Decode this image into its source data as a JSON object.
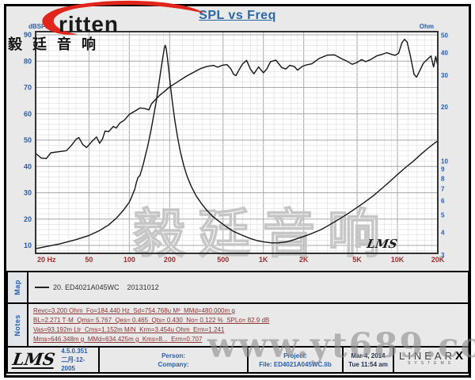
{
  "brand": {
    "logo_text": "ritten",
    "chinese": "毅廷音响"
  },
  "header": {
    "title": "SPL vs Freq"
  },
  "map_section": {
    "label": "Map",
    "legend": "20. ED4021A045WC    20131012"
  },
  "notes_section": {
    "label": "Notes",
    "lines": [
      "Revc=3.200 Ohm  Fo=184.440 Hz  Sd=754.768u M²  MMd=480.000m g",
      "BL=2.271 T·M  Qms= 5.767  Qes= 0.465  Qts= 0.430  No= 0.122 %  SPLo= 82.9 dB",
      "Vas=93.192m Ltr  Cms=1.152m M/N  Krm=3.454u Ohm  Erm=1.241",
      "Mms=646.348m g  MMd=634.425m g  Kms=8...  Erm=0.707"
    ]
  },
  "footer": {
    "lms_logo": "LMS",
    "version": "4.5.0.351",
    "release_date": "二月-12-2005",
    "person_label": "Person:",
    "company_label": "Company:",
    "project_label": "Project:",
    "file_label": "File: ED4021A045WC.lib",
    "date": "Mar  4, 2014",
    "time": "Tue 11:54 am",
    "linearx_main": "LINEAR",
    "linearx_x": "X",
    "linearx_sub": "SYSTEMS"
  },
  "watermarks": {
    "site": "www.yt689.com",
    "chinese": "毅廷音响",
    "lms_script": "LMS"
  },
  "chart_data": {
    "type": "line",
    "title": "SPL vs Freq",
    "grid": true,
    "x_axis": {
      "label": "Hz",
      "scale": "log",
      "min": 20,
      "max": 20000,
      "tick_values": [
        20,
        50,
        100,
        200,
        500,
        1000,
        2000,
        5000,
        10000,
        20000
      ],
      "tick_labels": [
        "20 Hz",
        "50",
        "100",
        "200",
        "500",
        "1K",
        "2K",
        "5K",
        "10K",
        "20K"
      ]
    },
    "y_left": {
      "label": "dBSPL",
      "scale": "linear",
      "min": 10,
      "max": 90,
      "ticks": [
        90,
        80,
        70,
        60,
        50,
        40,
        30,
        20,
        10
      ]
    },
    "y_right": {
      "label": "Ohm",
      "scale": "log",
      "min": 3,
      "max": 50,
      "ticks": [
        50,
        40,
        30,
        20,
        10,
        9,
        8,
        7,
        6,
        5,
        4,
        3
      ]
    },
    "series": [
      {
        "name": "20. ED4021A045WC 20131012 (SPL dB)",
        "axis": "left",
        "points": [
          [
            20,
            45
          ],
          [
            22,
            43.2
          ],
          [
            24,
            43
          ],
          [
            26,
            45.2
          ],
          [
            30,
            45.6
          ],
          [
            34,
            46
          ],
          [
            37,
            48
          ],
          [
            40,
            50.3
          ],
          [
            42,
            51
          ],
          [
            45,
            48.3
          ],
          [
            48,
            47.2
          ],
          [
            53,
            49.7
          ],
          [
            57,
            51.2
          ],
          [
            60,
            48.8
          ],
          [
            63,
            50.4
          ],
          [
            66,
            53.5
          ],
          [
            70,
            53.2
          ],
          [
            76,
            55.2
          ],
          [
            80,
            54.6
          ],
          [
            85,
            56.5
          ],
          [
            92,
            57.6
          ],
          [
            100,
            59.8
          ],
          [
            110,
            61
          ],
          [
            120,
            62.2
          ],
          [
            130,
            62
          ],
          [
            140,
            61.5
          ],
          [
            146,
            63.7
          ],
          [
            155,
            65.2
          ],
          [
            170,
            67.2
          ],
          [
            185,
            68.7
          ],
          [
            200,
            70.2
          ],
          [
            230,
            72.2
          ],
          [
            265,
            74.2
          ],
          [
            300,
            75.7
          ],
          [
            340,
            77.2
          ],
          [
            380,
            78
          ],
          [
            425,
            78.4
          ],
          [
            455,
            77.7
          ],
          [
            490,
            78.4
          ],
          [
            535,
            78.7
          ],
          [
            570,
            77.2
          ],
          [
            600,
            75
          ],
          [
            625,
            74.5
          ],
          [
            650,
            76.2
          ],
          [
            700,
            79
          ],
          [
            750,
            80.3
          ],
          [
            800,
            77
          ],
          [
            850,
            75.2
          ],
          [
            920,
            77.8
          ],
          [
            1000,
            75.6
          ],
          [
            1060,
            77
          ],
          [
            1130,
            79.8
          ],
          [
            1240,
            80.4
          ],
          [
            1370,
            77.6
          ],
          [
            1470,
            77
          ],
          [
            1570,
            78.4
          ],
          [
            1700,
            78
          ],
          [
            1800,
            76.6
          ],
          [
            1950,
            78
          ],
          [
            2100,
            78.6
          ],
          [
            2300,
            79
          ],
          [
            2600,
            81
          ],
          [
            3000,
            82.3
          ],
          [
            3400,
            82.4
          ],
          [
            3800,
            81
          ],
          [
            4200,
            80
          ],
          [
            4600,
            78.8
          ],
          [
            5000,
            79.5
          ],
          [
            5400,
            80.6
          ],
          [
            5800,
            79.8
          ],
          [
            6300,
            80.6
          ],
          [
            7000,
            82
          ],
          [
            7700,
            82.6
          ],
          [
            8300,
            83.2
          ],
          [
            9000,
            82.6
          ],
          [
            9600,
            82.2
          ],
          [
            10200,
            83
          ],
          [
            10800,
            87
          ],
          [
            11300,
            88.3
          ],
          [
            11800,
            87.3
          ],
          [
            12500,
            82
          ],
          [
            13300,
            75
          ],
          [
            13900,
            73.9
          ],
          [
            14700,
            76.5
          ],
          [
            15600,
            79.2
          ],
          [
            16800,
            80.8
          ],
          [
            17800,
            82
          ],
          [
            18600,
            77.8
          ],
          [
            19300,
            81.8
          ],
          [
            20000,
            78.2
          ]
        ]
      },
      {
        "name": "Impedance (Ohm)",
        "axis": "right",
        "points": [
          [
            20,
            3.25
          ],
          [
            30,
            3.45
          ],
          [
            40,
            3.65
          ],
          [
            50,
            3.85
          ],
          [
            60,
            4.1
          ],
          [
            70,
            4.4
          ],
          [
            80,
            4.8
          ],
          [
            90,
            5.3
          ],
          [
            100,
            5.9
          ],
          [
            105,
            6.4
          ],
          [
            110,
            7.0
          ],
          [
            113,
            7.6
          ],
          [
            116,
            8.1
          ],
          [
            120,
            8.3
          ],
          [
            124,
            9.0
          ],
          [
            128,
            9.8
          ],
          [
            132,
            10.8
          ],
          [
            136,
            11.8
          ],
          [
            140,
            13
          ],
          [
            145,
            14.8
          ],
          [
            150,
            17
          ],
          [
            158,
            21
          ],
          [
            165,
            26
          ],
          [
            172,
            32
          ],
          [
            178,
            38
          ],
          [
            182,
            42
          ],
          [
            185,
            44
          ],
          [
            188,
            42.5
          ],
          [
            192,
            38
          ],
          [
            197,
            32
          ],
          [
            203,
            26
          ],
          [
            210,
            21
          ],
          [
            218,
            17
          ],
          [
            228,
            13.8
          ],
          [
            240,
            11.3
          ],
          [
            255,
            9.4
          ],
          [
            270,
            8.2
          ],
          [
            290,
            7.2
          ],
          [
            315,
            6.4
          ],
          [
            345,
            5.8
          ],
          [
            380,
            5.3
          ],
          [
            420,
            4.9
          ],
          [
            470,
            4.6
          ],
          [
            530,
            4.3
          ],
          [
            600,
            4.05
          ],
          [
            700,
            3.85
          ],
          [
            800,
            3.7
          ],
          [
            900,
            3.6
          ],
          [
            1000,
            3.55
          ],
          [
            1150,
            3.5
          ],
          [
            1300,
            3.5
          ],
          [
            1500,
            3.55
          ],
          [
            1700,
            3.65
          ],
          [
            2000,
            3.8
          ],
          [
            2300,
            3.95
          ],
          [
            2700,
            4.15
          ],
          [
            3100,
            4.4
          ],
          [
            3600,
            4.7
          ],
          [
            4200,
            5.05
          ],
          [
            4900,
            5.45
          ],
          [
            5700,
            5.9
          ],
          [
            6600,
            6.4
          ],
          [
            7600,
            7.0
          ],
          [
            8800,
            7.7
          ],
          [
            10000,
            8.4
          ],
          [
            11500,
            9.2
          ],
          [
            13000,
            9.9
          ],
          [
            15000,
            10.9
          ],
          [
            17000,
            11.8
          ],
          [
            19000,
            12.6
          ],
          [
            20000,
            12.9
          ]
        ]
      }
    ]
  }
}
